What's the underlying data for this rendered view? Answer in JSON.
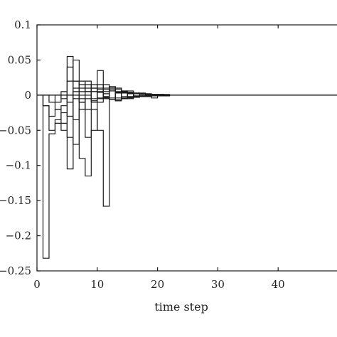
{
  "chart_data": {
    "type": "line",
    "step": true,
    "title": "",
    "xlabel": "time step",
    "ylabel": "",
    "xlim": [
      0,
      50
    ],
    "ylim": [
      -0.25,
      0.1
    ],
    "grid": false,
    "legend": "none",
    "x_ticks": [
      0,
      10,
      20,
      30,
      40
    ],
    "x_tick_labels": [
      "0",
      "10",
      "20",
      "30",
      "40"
    ],
    "y_ticks": [
      0.1,
      0.05,
      0,
      -0.05,
      -0.1,
      -0.15,
      -0.2,
      -0.25
    ],
    "y_tick_labels": [
      "0.1",
      "0.05",
      "0",
      "−0.05",
      "−0.1",
      "−0.15",
      "−0.2",
      "−0.25"
    ],
    "line_color": "#1a1a1a",
    "x": [
      0,
      1,
      2,
      3,
      4,
      5,
      6,
      7,
      8,
      9,
      10,
      11,
      12,
      13,
      14,
      15,
      16,
      17,
      18,
      19,
      20,
      21,
      22,
      23,
      24,
      25,
      26,
      27,
      28,
      29,
      30,
      31,
      32,
      33,
      34,
      35,
      36,
      37,
      38,
      39,
      40,
      41,
      42,
      43,
      44,
      45,
      46,
      47,
      48,
      49
    ],
    "series": [
      {
        "values": [
          0,
          -0.232,
          -0.055,
          -0.04,
          -0.05,
          0.055,
          -0.035,
          -0.005,
          -0.06,
          -0.02,
          -0.05,
          -0.158,
          0.012,
          -0.008,
          0.006,
          -0.004,
          0.003,
          -0.002,
          0.002,
          -0.001,
          0.001,
          0,
          0,
          0,
          0,
          0,
          0,
          0,
          0,
          0,
          0,
          0,
          0,
          0,
          0,
          0,
          0,
          0,
          0,
          0,
          0,
          0,
          0,
          0,
          0,
          0,
          0,
          0,
          0,
          0
        ]
      },
      {
        "values": [
          0,
          -0.015,
          -0.05,
          -0.035,
          -0.025,
          -0.105,
          0.05,
          -0.09,
          -0.115,
          -0.05,
          0.035,
          0.002,
          -0.006,
          0.01,
          -0.005,
          0.004,
          -0.003,
          0.002,
          -0.001,
          0.001,
          0,
          0,
          0,
          0,
          0,
          0,
          0,
          0,
          0,
          0,
          0,
          0,
          0,
          0,
          0,
          0,
          0,
          0,
          0,
          0,
          0,
          0,
          0,
          0,
          0,
          0,
          0,
          0,
          0,
          0
        ]
      },
      {
        "values": [
          0,
          -0.015,
          -0.03,
          -0.02,
          -0.04,
          -0.06,
          -0.07,
          -0.02,
          0.02,
          0.005,
          0.015,
          -0.005,
          0.01,
          -0.006,
          0.004,
          -0.003,
          0.002,
          -0.001,
          0.001,
          0,
          0,
          0,
          0,
          0,
          0,
          0,
          0,
          0,
          0,
          0,
          0,
          0,
          0,
          0,
          0,
          0,
          0,
          0,
          0,
          0,
          0,
          0,
          0,
          0,
          0,
          0,
          0,
          0,
          0,
          0
        ]
      },
      {
        "values": [
          0,
          0,
          -0.01,
          -0.02,
          -0.015,
          0.04,
          0.02,
          0.01,
          0.015,
          -0.01,
          0.01,
          0.005,
          -0.004,
          0.003,
          -0.002,
          0.002,
          -0.001,
          0.001,
          0,
          0,
          0,
          0,
          0,
          0,
          0,
          0,
          0,
          0,
          0,
          0,
          0,
          0,
          0,
          0,
          0,
          0,
          0,
          0,
          0,
          0,
          0,
          0,
          0,
          0,
          0,
          0,
          0,
          0,
          0,
          0
        ]
      },
      {
        "values": [
          0,
          0,
          0,
          -0.01,
          0.005,
          -0.03,
          0.005,
          0.02,
          0.005,
          0.01,
          0.005,
          -0.002,
          0.008,
          -0.008,
          0.006,
          -0.005,
          0.003,
          -0.002,
          0.001,
          -0.001,
          0,
          0,
          0,
          0,
          0,
          0,
          0,
          0,
          0,
          0,
          0,
          0,
          0,
          0,
          0,
          0,
          0,
          0,
          0,
          0,
          0,
          0,
          0,
          0,
          0,
          0,
          0,
          0,
          0,
          0
        ]
      },
      {
        "values": [
          0,
          0,
          0,
          0,
          -0.005,
          0.02,
          0.02,
          0.015,
          0.005,
          0.015,
          -0.005,
          0.01,
          0.006,
          0.004,
          -0.005,
          0.004,
          -0.003,
          0.002,
          -0.002,
          0.001,
          -0.001,
          0.001,
          0,
          0,
          0,
          0,
          0,
          0,
          0,
          0,
          0,
          0,
          0,
          0,
          0,
          0,
          0,
          0,
          0,
          0,
          0,
          0,
          0,
          0,
          0,
          0,
          0,
          0,
          0,
          0
        ]
      },
      {
        "values": [
          0,
          0,
          0,
          0,
          0,
          -0.01,
          0.01,
          -0.01,
          -0.02,
          0.01,
          -0.01,
          0.008,
          -0.006,
          0.005,
          -0.004,
          0.003,
          -0.002,
          0.002,
          -0.001,
          0.001,
          0,
          0,
          0,
          0,
          0,
          0,
          0,
          0,
          0,
          0,
          0,
          0,
          0,
          0,
          0,
          0,
          0,
          0,
          0,
          0,
          0,
          0,
          0,
          0,
          0,
          0,
          0,
          0,
          0,
          0
        ]
      },
      {
        "values": [
          0,
          0,
          0,
          0,
          0,
          0,
          -0.005,
          0.005,
          0.01,
          -0.005,
          0.008,
          -0.003,
          0.012,
          -0.004,
          0.005,
          -0.003,
          0.002,
          -0.001,
          0.001,
          -0.001,
          0.001,
          0,
          0,
          0,
          0,
          0,
          0,
          0,
          0,
          0,
          0,
          0,
          0,
          0,
          0,
          0,
          0,
          0,
          0,
          0,
          0,
          0,
          0,
          0,
          0,
          0,
          0,
          0,
          0,
          0
        ]
      },
      {
        "values": [
          0,
          0,
          0,
          0,
          0,
          0,
          0,
          -0.01,
          -0.005,
          0.005,
          -0.004,
          0.015,
          -0.006,
          0.008,
          0.003,
          -0.002,
          0.002,
          -0.001,
          0.001,
          0,
          0,
          0,
          0,
          0,
          0,
          0,
          0,
          0,
          0,
          0,
          0,
          0,
          0,
          0,
          0,
          0,
          0,
          0,
          0,
          0,
          0,
          0,
          0,
          0,
          0,
          0,
          0,
          0,
          0,
          0
        ]
      },
      {
        "values": [
          0,
          0,
          0,
          0,
          0,
          0,
          0,
          0,
          0,
          -0.008,
          0.004,
          -0.004,
          0.006,
          0.01,
          -0.004,
          0.006,
          -0.003,
          0.003,
          -0.002,
          -0.004,
          0.001,
          -0.001,
          0,
          0,
          0,
          0,
          0,
          0,
          0,
          0,
          0,
          0,
          0,
          0,
          0,
          0,
          0,
          0,
          0,
          0,
          0,
          0,
          0,
          0,
          0,
          0,
          0,
          0,
          0,
          0
        ]
      }
    ]
  }
}
